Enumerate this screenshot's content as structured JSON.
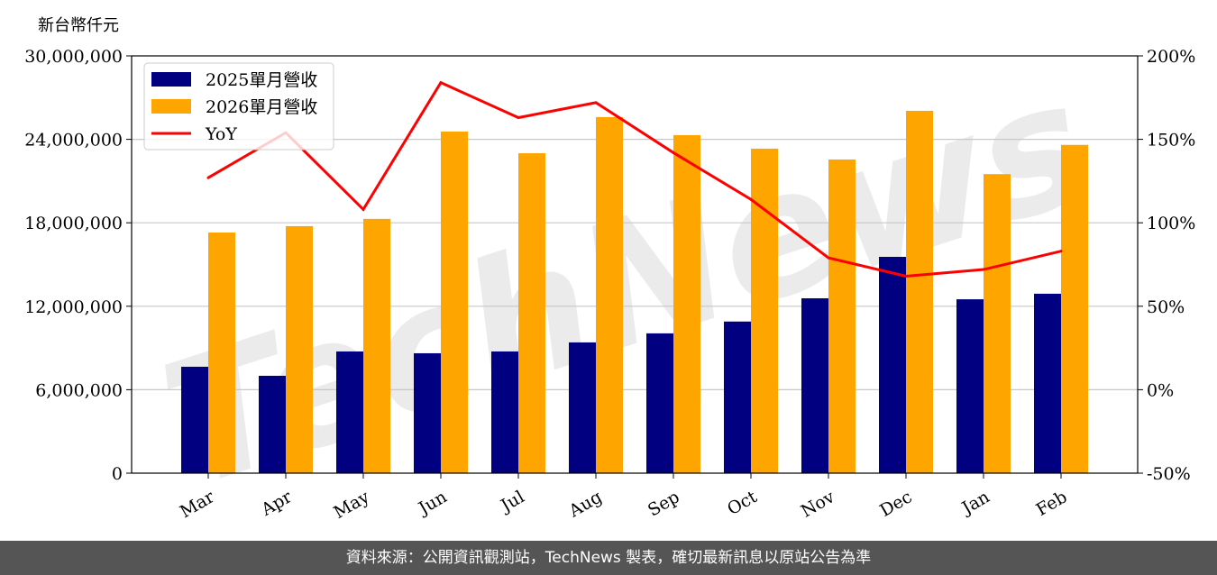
{
  "chart_data": {
    "type": "bar",
    "ylabel": "新台幣仟元",
    "categories": [
      "Mar",
      "Apr",
      "May",
      "Jun",
      "Jul",
      "Aug",
      "Sep",
      "Oct",
      "Nov",
      "Dec",
      "Jan",
      "Feb"
    ],
    "series": [
      {
        "name": "2025單月營收",
        "kind": "bar",
        "axis": "left",
        "color": "#000080",
        "values": [
          7650000,
          7000000,
          8750000,
          8620000,
          8750000,
          9400000,
          10050000,
          10900000,
          12570000,
          15550000,
          12500000,
          12900000
        ]
      },
      {
        "name": "2026單月營收",
        "kind": "bar",
        "axis": "left",
        "color": "#FFA500",
        "values": [
          17300000,
          17760000,
          18280000,
          24560000,
          23000000,
          25600000,
          24300000,
          23330000,
          22550000,
          26050000,
          21500000,
          23600000
        ]
      },
      {
        "name": "YoY",
        "kind": "line",
        "axis": "right",
        "color": "#FF0000",
        "values": [
          127,
          154,
          108,
          184,
          163,
          172,
          142,
          114,
          79,
          68,
          72,
          83
        ]
      }
    ],
    "ylim_left": [
      0,
      30000000
    ],
    "yticks_left": [
      "0",
      "6,000,000",
      "12,000,000",
      "18,000,000",
      "24,000,000",
      "30,000,000"
    ],
    "ylim_right": [
      -50,
      200
    ],
    "yticks_right": [
      "-50%",
      "0%",
      "50%",
      "100%",
      "150%",
      "200%"
    ],
    "grid": true,
    "legend": "top-left",
    "watermark": "TechNews"
  },
  "footer": "資料來源：公開資訊觀測站，TechNews 製表，確切最新訊息以原站公告為準"
}
